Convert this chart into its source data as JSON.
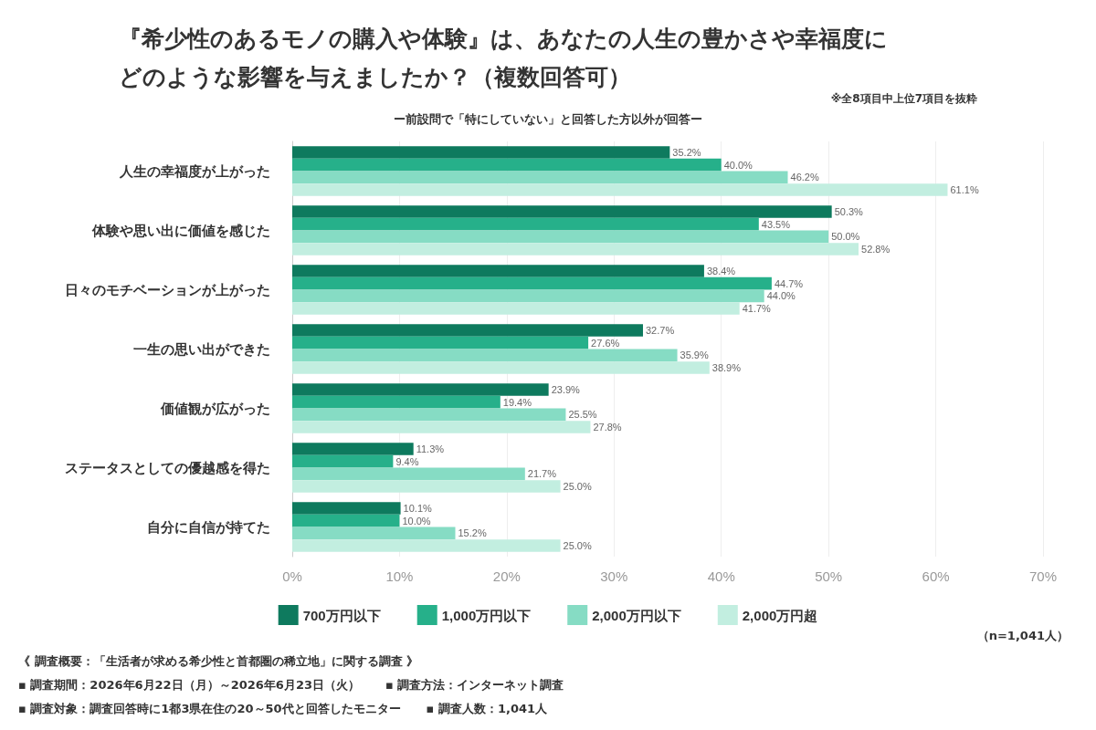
{
  "chart_data": {
    "type": "bar",
    "orientation": "horizontal",
    "title": "『希少性のあるモノの購入や体験』は、あなたの人生の豊かさや幸福度にどのような影響を与えましたか？（複数回答可）",
    "subtitle": "ー前設問で「特にしていない」と回答した方以外が回答ー",
    "categories": [
      "人生の幸福度が上がった",
      "体験や思い出に価値を感じた",
      "日々のモチベーションが上がった",
      "一生の思い出ができた",
      "価値観が広がった",
      "ステータスとしての優越感を得た",
      "自分に自信が持てた"
    ],
    "series": [
      {
        "name": "700万円以下",
        "color": "#0e7a5e",
        "values": [
          35.2,
          50.3,
          38.4,
          32.7,
          23.9,
          11.3,
          10.1
        ],
        "value_labels": [
          "35.2%",
          "50.3%",
          "38.4%",
          "32.7%",
          "23.9%",
          "11.3%",
          "10.1%"
        ]
      },
      {
        "name": "1,000万円以下",
        "color": "#26b08a",
        "values": [
          40.0,
          43.5,
          44.7,
          27.6,
          19.4,
          9.4,
          10.0
        ],
        "value_labels": [
          "40.0%",
          "43.5%",
          "44.7%",
          "27.6%",
          "19.4%",
          "9.4%",
          "10.0%"
        ]
      },
      {
        "name": "2,000万円以下",
        "color": "#86dcc4",
        "values": [
          46.2,
          50.0,
          44.0,
          35.9,
          25.5,
          21.7,
          15.2
        ],
        "value_labels": [
          "46.2%",
          "50.0%",
          "44.0%",
          "35.9%",
          "25.5%",
          "21.7%",
          "15.2%"
        ]
      },
      {
        "name": "2,000万円超",
        "color": "#c2eee0",
        "values": [
          61.1,
          52.8,
          41.7,
          38.9,
          27.8,
          25.0,
          25.0
        ],
        "value_labels": [
          "61.1%",
          "52.8%",
          "41.7%",
          "38.9%",
          "27.8%",
          "25.0%",
          "25.0%"
        ]
      }
    ],
    "xlim": [
      0,
      70
    ],
    "xticks": [
      {
        "value": 0,
        "label": "0%"
      },
      {
        "value": 10,
        "label": "10%"
      },
      {
        "value": 20,
        "label": "20%"
      },
      {
        "value": 30,
        "label": "30%"
      },
      {
        "value": 40,
        "label": "40%"
      },
      {
        "value": 50,
        "label": "50%"
      },
      {
        "value": 60,
        "label": "60%"
      },
      {
        "value": 70,
        "label": "70%"
      }
    ],
    "grid": "x",
    "legend": "bottom",
    "annotations": [
      "※全8項目中上位7項目を抜粋",
      "（n=1,041人）",
      "《 調査概要：「生活者が求める希少性と首都圏の稀立地」に関する調査 》",
      "▪ 調査期間：2026年6月22日（月）～2026年6月23日（火）",
      "▪ 調査方法：インターネット調査",
      "▪ 調査対象：調査回答時に1都3県在住の20～50代と回答したモニター",
      "▪ 調査人数：1,041人"
    ]
  }
}
